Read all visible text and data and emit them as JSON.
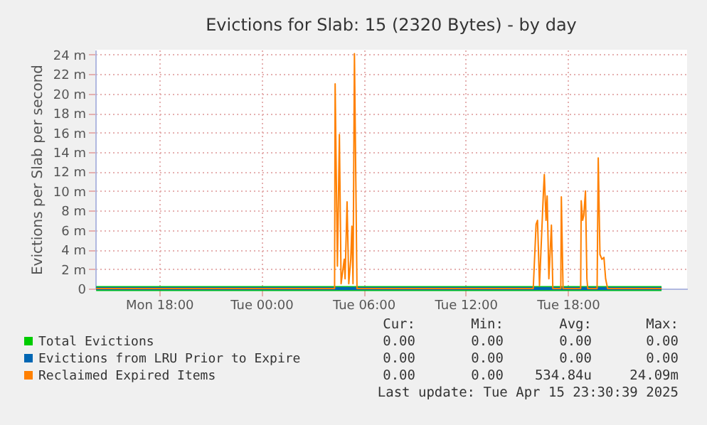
{
  "chart_data": {
    "type": "line",
    "title": "Evictions for Slab: 15 (2320 Bytes) - by day",
    "ylabel": "Evictions per Slab per second",
    "xlim": [
      "2025-04-14T14:15",
      "2025-04-16T01:00"
    ],
    "ylim": [
      0,
      24.5
    ],
    "xticks": [
      {
        "value": "2025-04-14T18:00",
        "label": "Mon 18:00"
      },
      {
        "value": "2025-04-15T00:00",
        "label": "Tue 00:00"
      },
      {
        "value": "2025-04-15T06:00",
        "label": "Tue 06:00"
      },
      {
        "value": "2025-04-15T12:00",
        "label": "Tue 12:00"
      },
      {
        "value": "2025-04-15T18:00",
        "label": "Tue 18:00"
      }
    ],
    "yticks": [
      0,
      {
        "value": 2,
        "label": "2 m"
      },
      {
        "value": 4,
        "label": "4 m"
      },
      {
        "value": 6,
        "label": "6 m"
      },
      {
        "value": 8,
        "label": "8 m"
      },
      {
        "value": 10,
        "label": "10 m"
      },
      {
        "value": 12,
        "label": "12 m"
      },
      {
        "value": 14,
        "label": "14 m"
      },
      {
        "value": 16,
        "label": "16 m"
      },
      {
        "value": 18,
        "label": "18 m"
      },
      {
        "value": 20,
        "label": "20 m"
      },
      {
        "value": 22,
        "label": "22 m"
      },
      {
        "value": 24,
        "label": "24 m"
      }
    ],
    "grid": true,
    "legend": "bottom",
    "line_style": "solid",
    "marker": "none",
    "series": [
      {
        "name": "Total Evictions",
        "color": "#00cc00",
        "x": [
          "2025-04-14T14:18",
          "2025-04-15T23:30"
        ],
        "values": [
          0,
          0
        ]
      },
      {
        "name": "Evictions from LRU Prior to Expire",
        "color": "#0066b3",
        "x": [
          "2025-04-14T14:18",
          "2025-04-15T23:30"
        ],
        "values": [
          0,
          0
        ]
      },
      {
        "name": "Reclaimed Expired Items",
        "color": "#ff8000",
        "x": [
          "2025-04-14T14:18",
          "2025-04-15T04:18",
          "2025-04-15T04:20",
          "2025-04-15T04:28",
          "2025-04-15T04:35",
          "2025-04-15T04:41",
          "2025-04-15T04:52",
          "2025-04-15T04:55",
          "2025-04-15T05:02",
          "2025-04-15T05:08",
          "2025-04-15T05:15",
          "2025-04-15T05:19",
          "2025-04-15T05:23",
          "2025-04-15T05:28",
          "2025-04-15T05:37",
          "2025-04-15T15:58",
          "2025-04-15T16:08",
          "2025-04-15T16:13",
          "2025-04-15T16:20",
          "2025-04-15T16:34",
          "2025-04-15T16:37",
          "2025-04-15T16:43",
          "2025-04-15T16:47",
          "2025-04-15T16:53",
          "2025-04-15T17:02",
          "2025-04-15T17:07",
          "2025-04-15T17:35",
          "2025-04-15T17:37",
          "2025-04-15T17:43",
          "2025-04-15T18:45",
          "2025-04-15T18:47",
          "2025-04-15T18:52",
          "2025-04-15T18:56",
          "2025-04-15T19:02",
          "2025-04-15T19:07",
          "2025-04-15T19:10",
          "2025-04-15T19:43",
          "2025-04-15T19:47",
          "2025-04-15T19:53",
          "2025-04-15T20:00",
          "2025-04-15T20:07",
          "2025-04-15T20:13",
          "2025-04-15T20:20",
          "2025-04-15T23:30"
        ],
        "values": [
          0,
          0,
          21,
          2.3,
          15.8,
          0.5,
          3,
          1,
          8.9,
          0.5,
          3,
          6.4,
          0.5,
          24.1,
          0,
          0,
          6.6,
          7,
          0.3,
          10,
          11.7,
          7,
          9.5,
          1,
          6.5,
          0,
          0,
          9.4,
          0,
          0,
          9,
          7,
          7.5,
          10,
          1,
          0,
          0,
          13.4,
          3.5,
          3,
          3.2,
          1,
          0,
          0
        ]
      }
    ],
    "annotations": [
      "Cur:",
      "Min:",
      "Avg:",
      "Max:",
      "0.00",
      "0.00",
      "0.00",
      "0.00",
      "0.00",
      "0.00",
      "0.00",
      "0.00",
      "0.00",
      "0.00",
      "534.84u",
      "24.09m",
      "Last update: Tue Apr 15 23:30:39 2025"
    ]
  }
}
